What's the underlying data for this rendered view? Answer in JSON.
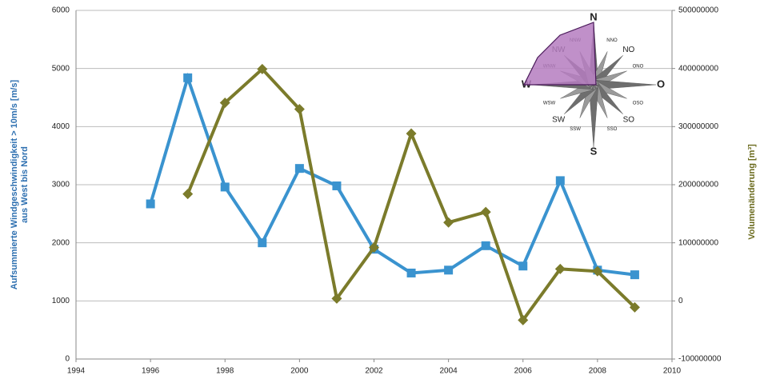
{
  "chart_data": {
    "type": "line",
    "ylabel": [
      "Aufsummierte Windgeschwindigkeit > 10m/s [m/s]",
      "aus West bis Nord"
    ],
    "y2label": "Volumenänderung [m³]",
    "x": [
      1996,
      1997,
      1998,
      1999,
      2000,
      2001,
      2002,
      2003,
      2004,
      2005,
      2006,
      2007,
      2008,
      2009
    ],
    "series": [
      {
        "color": "#3a93cf",
        "marker": "square",
        "values": [
          2670,
          4840,
          2960,
          2000,
          3280,
          2980,
          1890,
          1480,
          1530,
          1950,
          1600,
          3070,
          1530,
          1450
        ]
      },
      {
        "color": "#7b7b2b",
        "marker": "diamond",
        "axis": "y2",
        "values": [
          null,
          184000000,
          341000000,
          399000000,
          330000000,
          4000000,
          92000000,
          288000000,
          135000000,
          153000000,
          -33000000,
          55000000,
          51000000,
          -11000000
        ]
      }
    ],
    "xlim": [
      1994,
      2010
    ],
    "xticks": [
      1994,
      1996,
      1998,
      2000,
      2002,
      2004,
      2006,
      2008,
      2010
    ],
    "ylim": [
      0,
      6000
    ],
    "yticks": [
      0,
      1000,
      2000,
      3000,
      4000,
      5000,
      6000
    ],
    "y2lim": [
      -100000000,
      500000000
    ],
    "y2ticks": [
      -100000000,
      0,
      100000000,
      200000000,
      300000000,
      400000000,
      500000000
    ],
    "grid": true
  },
  "inset": {
    "labels": [
      "N",
      "NNO",
      "NO",
      "ONO",
      "O",
      "OSO",
      "SO",
      "SSO",
      "S",
      "SSW",
      "SW",
      "WSW",
      "W",
      "WNW",
      "NW",
      "NNW"
    ]
  }
}
